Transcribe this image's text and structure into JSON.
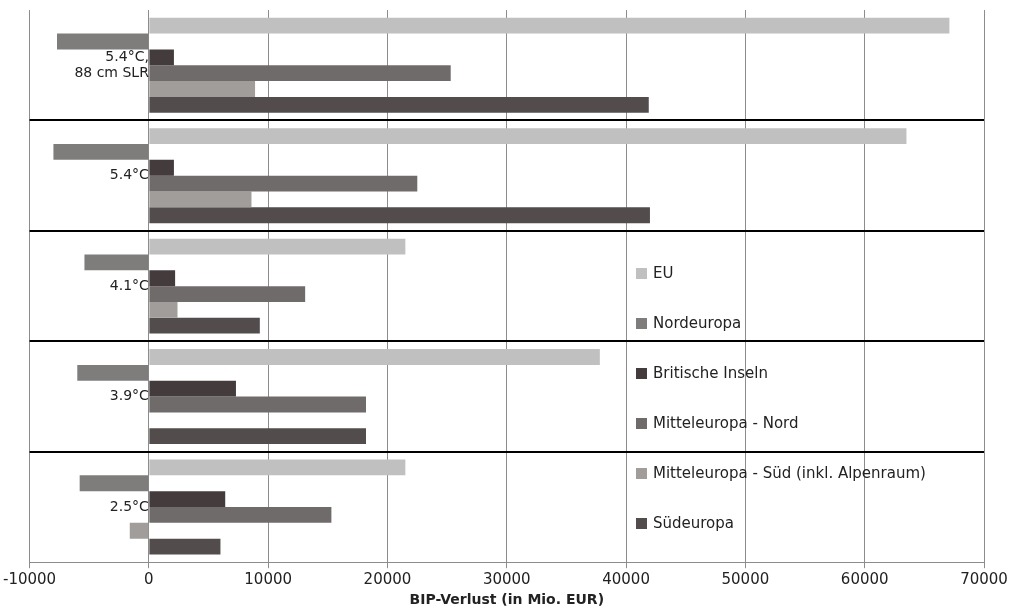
{
  "chart_data": {
    "type": "bar",
    "orientation": "horizontal",
    "xlabel": "BIP-Verlust (in Mio. EUR)",
    "categories": [
      "5.4°C, 88 cm SLR",
      "5.4°C",
      "4.1°C",
      "3.9°C",
      "2.5°C"
    ],
    "series": [
      {
        "name": "EU",
        "color": "#c0c0c0",
        "values": [
          67100,
          63500,
          21500,
          37800,
          21500
        ]
      },
      {
        "name": "Nordeuropa",
        "color": "#7f7c7c",
        "values": [
          -7700,
          -8000,
          -5400,
          -6000,
          -5800
        ]
      },
      {
        "name": "Britische Inseln",
        "color": "#433b3c",
        "values": [
          2100,
          2100,
          2200,
          7300,
          6400
        ]
      },
      {
        "name": "Mitteleuropa - Nord",
        "color": "#706b6b",
        "values": [
          25300,
          22500,
          13100,
          18200,
          15300
        ]
      },
      {
        "name": "Mitteleuropa - Süd (inkl. Alpenraum)",
        "color": "#a09d9b",
        "values": [
          8900,
          8600,
          2400,
          null,
          -1600
        ]
      },
      {
        "name": "Südeuropa",
        "color": "#524c4d",
        "values": [
          41900,
          42000,
          9300,
          18200,
          6000
        ]
      }
    ],
    "xlim": [
      -10000,
      70000
    ],
    "xticks": [
      -10000,
      0,
      10000,
      20000,
      30000,
      40000,
      50000,
      60000,
      70000
    ],
    "grid": "x",
    "legend": "right"
  }
}
